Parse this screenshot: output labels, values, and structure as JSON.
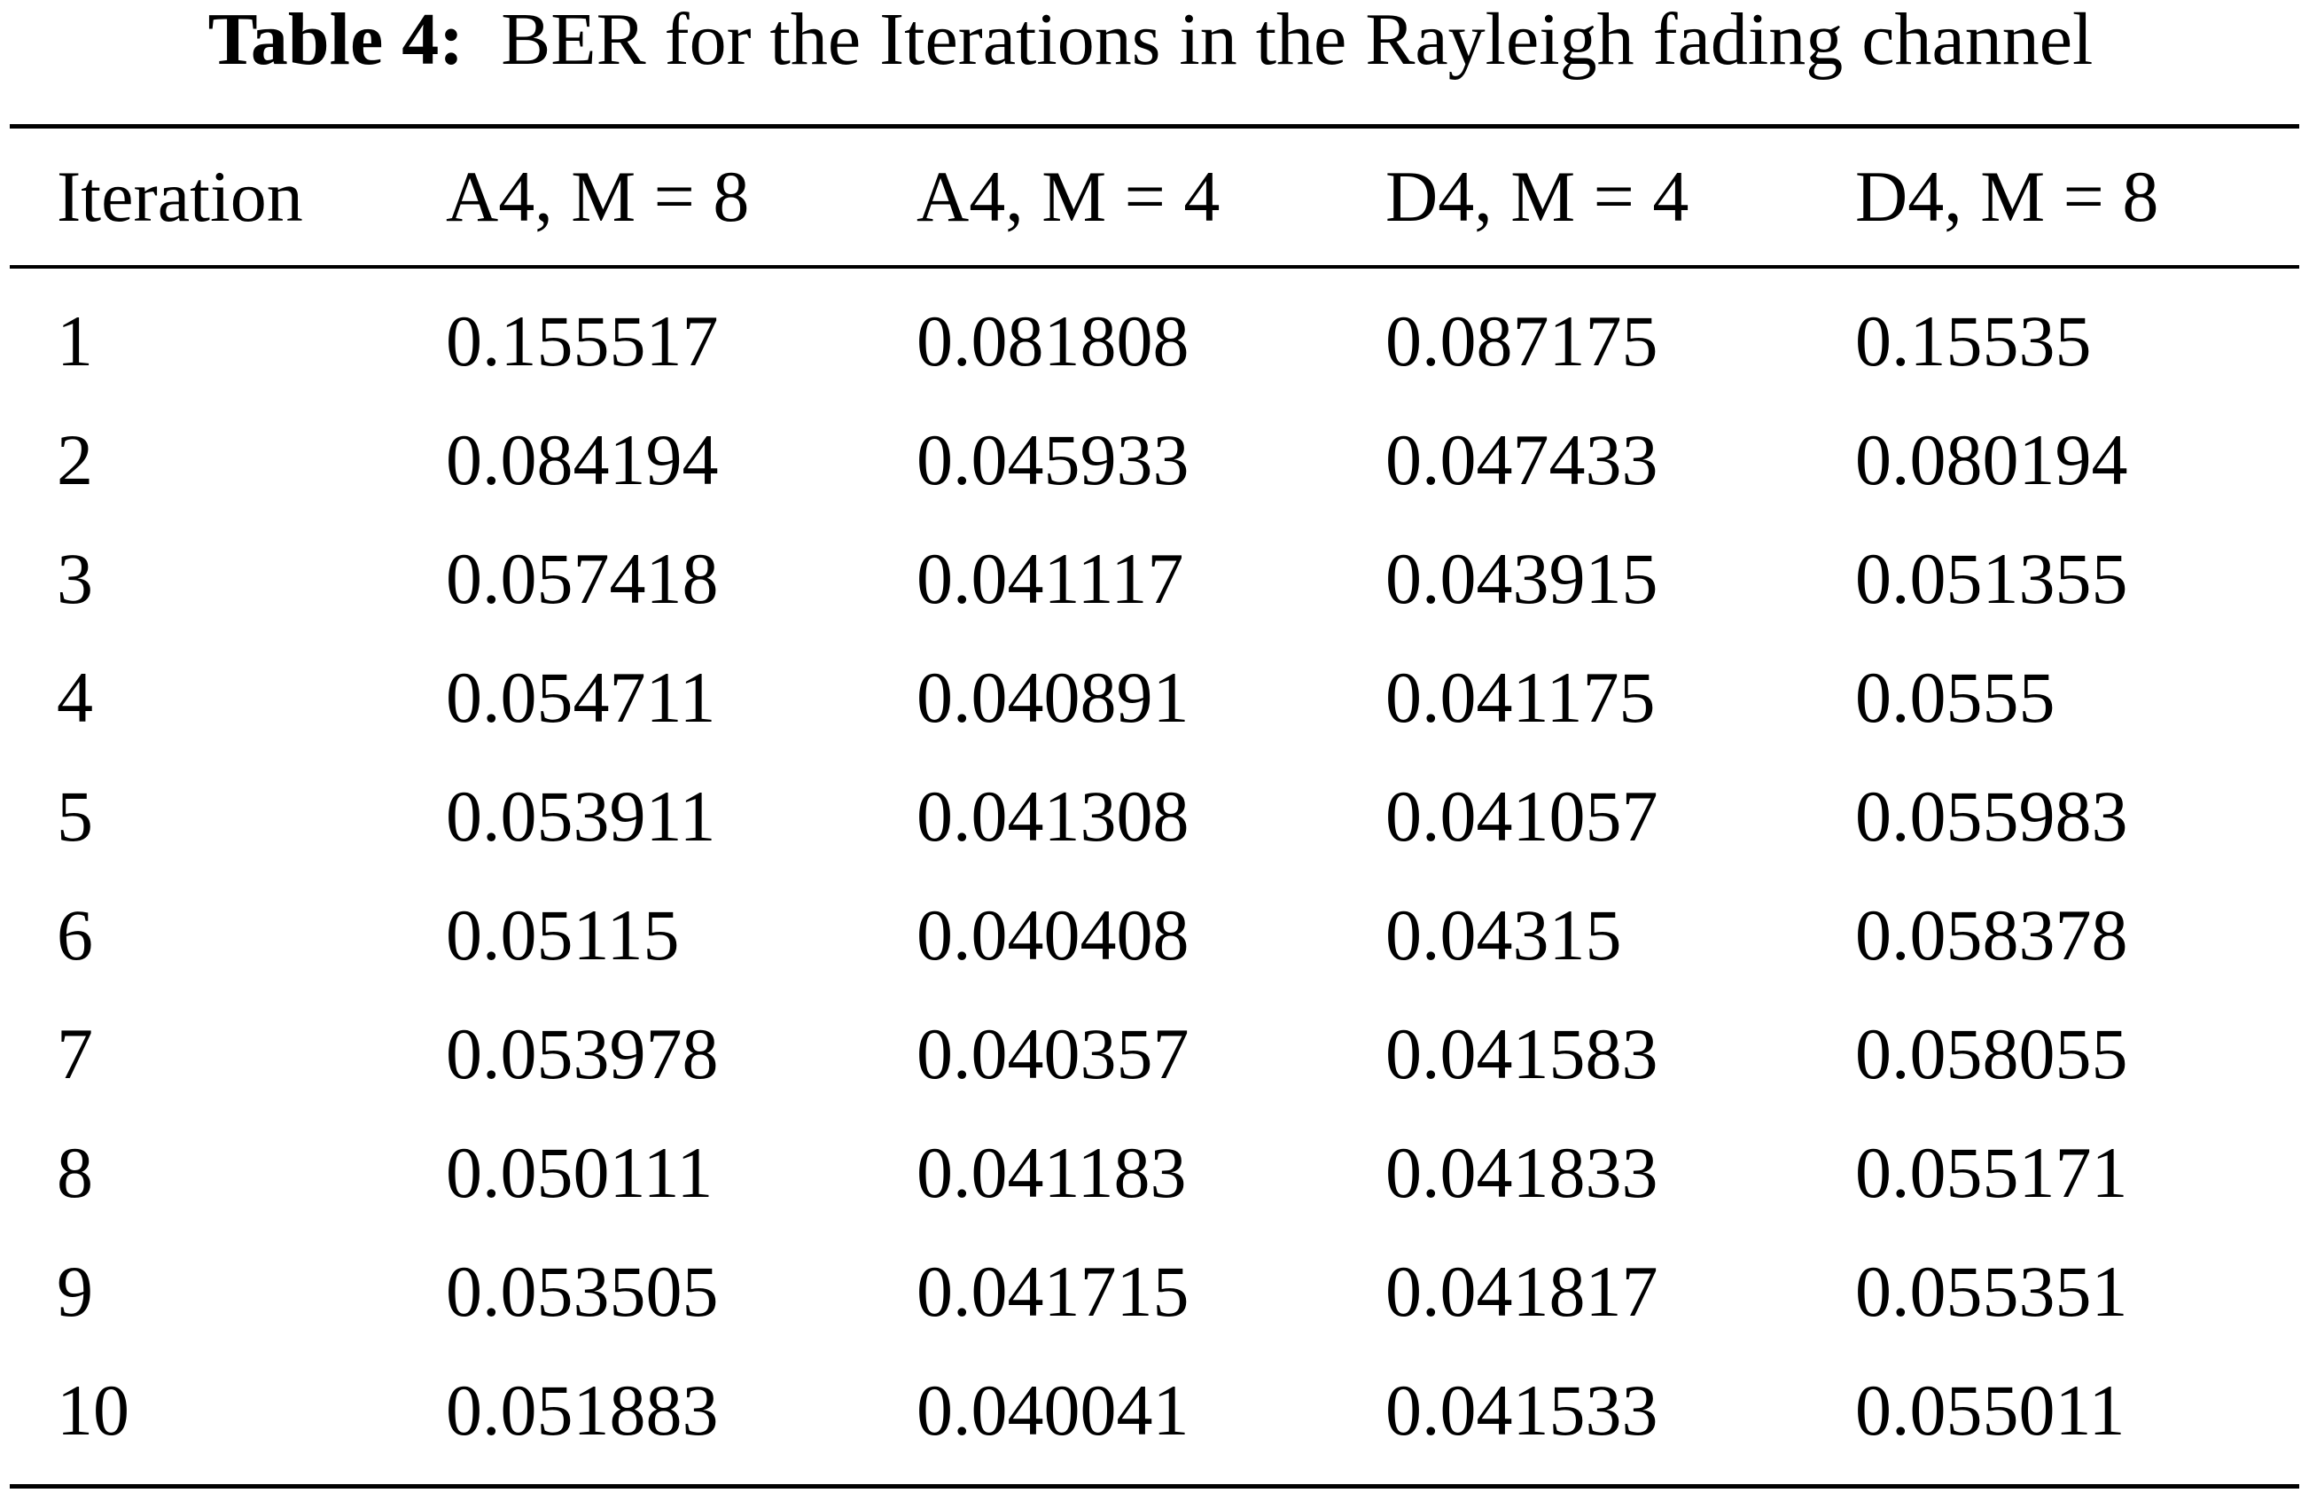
{
  "caption": {
    "label": "Table 4:",
    "text": "BER for the Iterations in the Rayleigh fading channel"
  },
  "table": {
    "headers": [
      "Iteration",
      "A4, M = 8",
      "A4, M = 4",
      "D4, M = 4",
      "D4, M = 8"
    ],
    "rows": [
      [
        "1",
        "0.155517",
        "0.081808",
        "0.087175",
        "0.15535"
      ],
      [
        "2",
        "0.084194",
        "0.045933",
        "0.047433",
        "0.080194"
      ],
      [
        "3",
        "0.057418",
        "0.041117",
        "0.043915",
        "0.051355"
      ],
      [
        "4",
        "0.054711",
        "0.040891",
        "0.041175",
        "0.0555"
      ],
      [
        "5",
        "0.053911",
        "0.041308",
        "0.041057",
        "0.055983"
      ],
      [
        "6",
        "0.05115",
        "0.040408",
        "0.04315",
        "0.058378"
      ],
      [
        "7",
        "0.053978",
        "0.040357",
        "0.041583",
        "0.058055"
      ],
      [
        "8",
        "0.050111",
        "0.041183",
        "0.041833",
        "0.055171"
      ],
      [
        "9",
        "0.053505",
        "0.041715",
        "0.041817",
        "0.055351"
      ],
      [
        "10",
        "0.051883",
        "0.040041",
        "0.041533",
        "0.055011"
      ]
    ]
  }
}
